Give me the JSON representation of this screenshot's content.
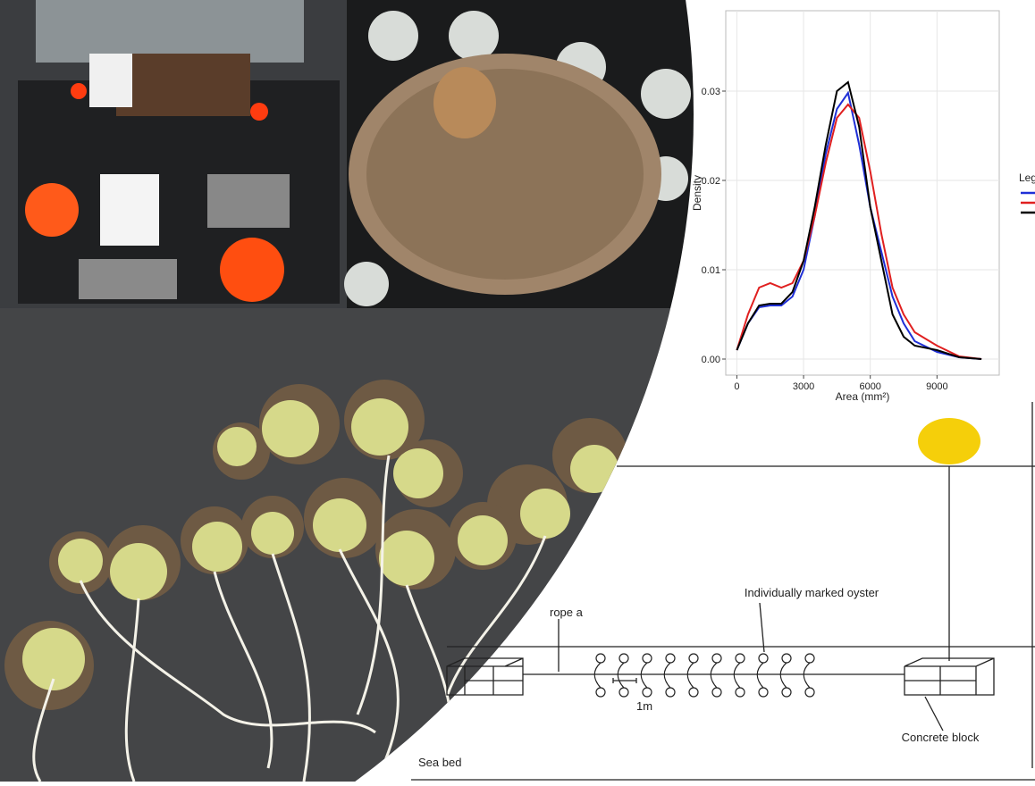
{
  "chart_data": {
    "type": "line",
    "y_label": "Density",
    "x_label": "Area (mm²)",
    "legend_title": "Leg",
    "x": [
      0,
      500,
      1000,
      1500,
      2000,
      2500,
      3000,
      3500,
      4000,
      4500,
      5000,
      5500,
      6000,
      6500,
      7000,
      7500,
      8000,
      9000,
      10000,
      11000
    ],
    "series": [
      {
        "color": "#1f2fd6",
        "values": [
          0.001,
          0.004,
          0.0058,
          0.006,
          0.006,
          0.007,
          0.01,
          0.016,
          0.023,
          0.028,
          0.0298,
          0.024,
          0.017,
          0.012,
          0.007,
          0.004,
          0.002,
          0.0008,
          0.0002,
          0
        ]
      },
      {
        "color": "#e02020",
        "values": [
          0.001,
          0.005,
          0.008,
          0.0085,
          0.008,
          0.0085,
          0.011,
          0.016,
          0.022,
          0.027,
          0.0285,
          0.027,
          0.021,
          0.014,
          0.008,
          0.005,
          0.003,
          0.0015,
          0.0003,
          0
        ]
      },
      {
        "color": "#000000",
        "values": [
          0.001,
          0.004,
          0.006,
          0.0062,
          0.0062,
          0.0075,
          0.011,
          0.017,
          0.024,
          0.03,
          0.031,
          0.026,
          0.017,
          0.011,
          0.005,
          0.0025,
          0.0015,
          0.001,
          0.0002,
          0
        ]
      }
    ],
    "xlim": [
      -500,
      11800
    ],
    "ylim": [
      -0.0018,
      0.039
    ],
    "xticks": [
      0,
      3000,
      6000,
      9000
    ],
    "yticks": [
      {
        "value": 0,
        "label": "0.00"
      },
      {
        "value": 0.01,
        "label": "0.01"
      },
      {
        "value": 0.02,
        "label": "0.02"
      },
      {
        "value": 0.03,
        "label": "0.03"
      }
    ],
    "grid": true
  },
  "diagram": {
    "oyster_label": "Individually marked oyster",
    "rope_label": "rope a",
    "spacing_label": "1m",
    "block_label": "Concrete block",
    "bed_label": "Sea bed"
  }
}
